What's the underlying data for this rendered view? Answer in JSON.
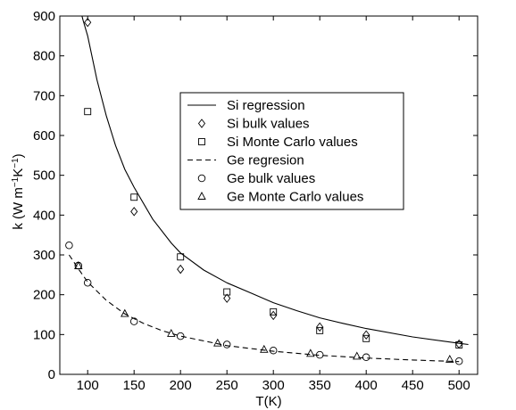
{
  "chart_data": {
    "type": "line",
    "title": "",
    "xlabel": "T(K)",
    "ylabel_main": "k (W m",
    "ylabel_exp1": "−1",
    "ylabel_mid": "K",
    "ylabel_exp2": "−1",
    "ylabel_end": ")",
    "xlim": [
      70,
      520
    ],
    "ylim": [
      0,
      900
    ],
    "xticks": [
      100,
      150,
      200,
      250,
      300,
      350,
      400,
      450,
      500
    ],
    "yticks": [
      0,
      100,
      200,
      300,
      400,
      500,
      600,
      700,
      800,
      900
    ],
    "grid": false,
    "legend_position": "center-right",
    "series": [
      {
        "name": "Si regression",
        "kind": "line",
        "style": "solid",
        "x": [
          90,
          95,
          100,
          110,
          120,
          130,
          140,
          150,
          170,
          190,
          200,
          225,
          250,
          275,
          300,
          325,
          350,
          375,
          400,
          450,
          500,
          510
        ],
        "y": [
          935,
          890,
          850,
          740,
          650,
          575,
          515,
          470,
          390,
          330,
          305,
          262,
          230,
          205,
          180,
          160,
          142,
          128,
          115,
          94,
          78,
          75
        ]
      },
      {
        "name": "Si bulk values",
        "kind": "scatter",
        "marker": "diamond",
        "x": [
          100,
          150,
          200,
          250,
          300,
          350,
          400,
          500
        ],
        "y": [
          884,
          409,
          264,
          191,
          148,
          119,
          99,
          76
        ]
      },
      {
        "name": "Si Monte Carlo values",
        "kind": "scatter",
        "marker": "square",
        "x": [
          100,
          150,
          200,
          250,
          300,
          350,
          400,
          500
        ],
        "y": [
          660,
          445,
          295,
          207,
          157,
          110,
          90,
          74
        ]
      },
      {
        "name": "Ge regresion",
        "kind": "line",
        "style": "dashed",
        "x": [
          80,
          90,
          100,
          120,
          140,
          160,
          180,
          200,
          250,
          300,
          350,
          400,
          450,
          500
        ],
        "y": [
          300,
          265,
          232,
          186,
          152,
          128,
          110,
          96,
          72,
          58,
          48,
          41,
          36,
          32
        ]
      },
      {
        "name": "Ge bulk values",
        "kind": "scatter",
        "marker": "circle",
        "x": [
          80,
          90,
          100,
          150,
          200,
          250,
          300,
          350,
          400,
          500
        ],
        "y": [
          324,
          273,
          230,
          133,
          96,
          75,
          60,
          49,
          43,
          33
        ]
      },
      {
        "name": "Ge Monte Carlo values",
        "kind": "scatter",
        "marker": "triangle",
        "x": [
          90,
          140,
          190,
          240,
          290,
          340,
          390,
          490
        ],
        "y": [
          272,
          152,
          102,
          78,
          62,
          52,
          45,
          37
        ]
      }
    ]
  }
}
